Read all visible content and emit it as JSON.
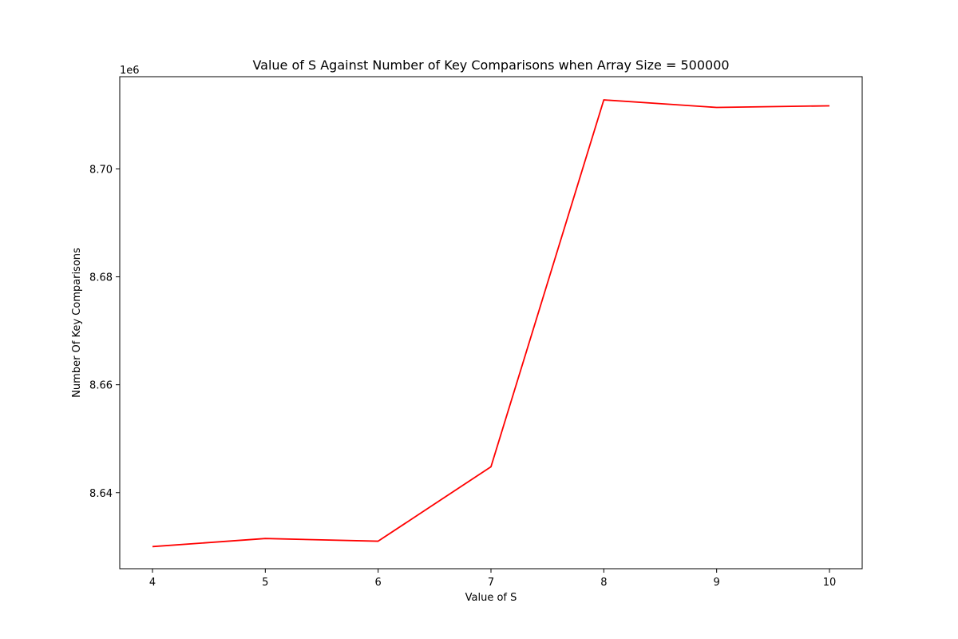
{
  "chart_data": {
    "type": "line",
    "title": "Value of S Against Number of Key Comparisons when Array Size = 500000",
    "xlabel": "Value of S",
    "ylabel": "Number Of Key Comparisons",
    "y_offset_label": "1e6",
    "y_scale_factor": 1000000,
    "xlim": [
      3.71,
      10.29
    ],
    "ylim": [
      8625900,
      8717100
    ],
    "x_ticks": [
      4,
      5,
      6,
      7,
      8,
      9,
      10
    ],
    "x_tick_labels": [
      "4",
      "5",
      "6",
      "7",
      "8",
      "9",
      "10"
    ],
    "y_ticks": [
      8640000,
      8660000,
      8680000,
      8700000
    ],
    "y_tick_labels": [
      "8.64",
      "8.66",
      "8.68",
      "8.70"
    ],
    "grid": false,
    "series": [
      {
        "color": "#ff0000",
        "x": [
          4,
          5,
          6,
          7,
          8,
          9,
          10
        ],
        "y": [
          8630000,
          8631500,
          8631000,
          8644800,
          8712800,
          8711400,
          8711700
        ]
      }
    ]
  }
}
